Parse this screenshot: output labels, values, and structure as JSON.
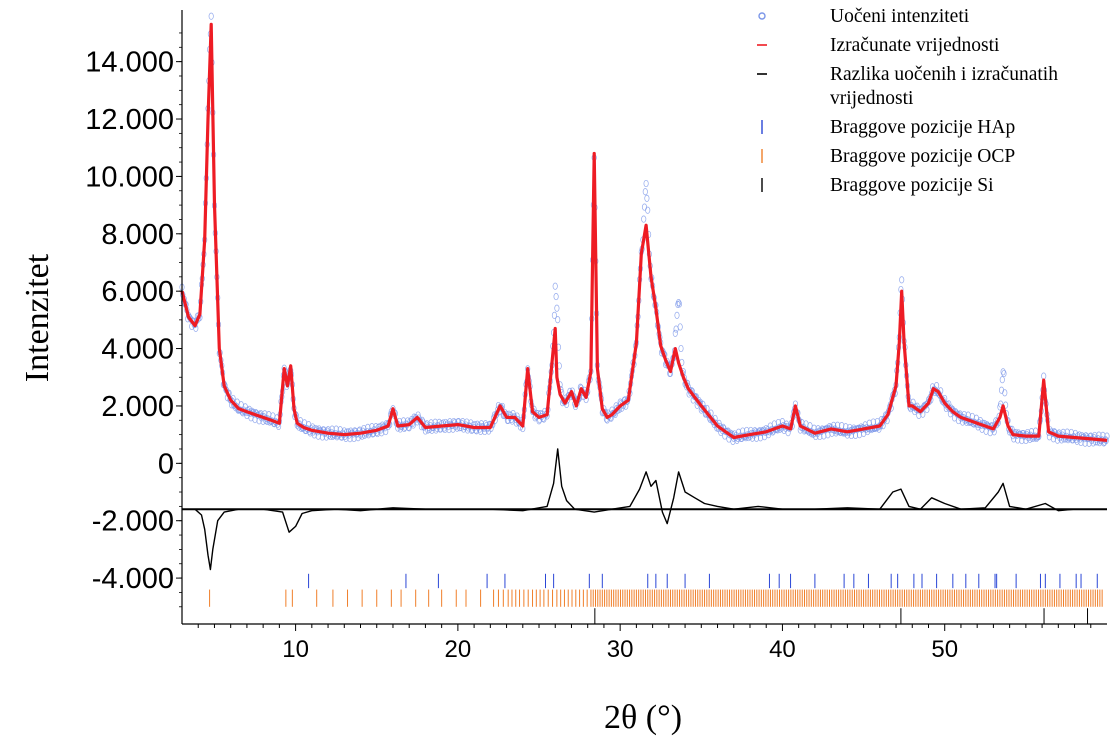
{
  "chart_data": {
    "type": "line",
    "title": "",
    "xlabel": "2θ (°)",
    "ylabel": "Intenzitet",
    "xlim": [
      3,
      60
    ],
    "ylim": [
      -5600,
      15800
    ],
    "grid": false,
    "legend_position": "top-right",
    "x_ticks": [
      {
        "value": 10,
        "label": "10"
      },
      {
        "value": 20,
        "label": "20"
      },
      {
        "value": 30,
        "label": "30"
      },
      {
        "value": 40,
        "label": "40"
      },
      {
        "value": 50,
        "label": "50"
      }
    ],
    "y_ticks": [
      {
        "value": 14000,
        "label": "14.000"
      },
      {
        "value": 12000,
        "label": "12.000"
      },
      {
        "value": 10000,
        "label": "10.000"
      },
      {
        "value": 8000,
        "label": "8.000"
      },
      {
        "value": 6000,
        "label": "6.000"
      },
      {
        "value": 4000,
        "label": "4.000"
      },
      {
        "value": 2000,
        "label": "2.000"
      },
      {
        "value": 0,
        "label": "0"
      },
      {
        "value": -2000,
        "label": "-2.000"
      },
      {
        "value": -4000,
        "label": "-4.000"
      }
    ],
    "colors": {
      "observed": "#7b96e8",
      "calculated": "#ee1c24",
      "difference": "#000000",
      "bragg_hap": "#2a46d6",
      "bragg_ocp": "#f07f2a",
      "bragg_si": "#000000"
    },
    "legend": [
      {
        "name": "Uočeni intenziteti",
        "marker": "circle",
        "color": "#7b96e8"
      },
      {
        "name": "Izračunate vrijednosti",
        "marker": "line",
        "color": "#ee1c24"
      },
      {
        "name": "Razlika uočenih i izračunatih vrijednosti",
        "marker": "line",
        "color": "#000000"
      },
      {
        "name": "Braggove pozicije HAp",
        "marker": "tick",
        "color": "#2a46d6"
      },
      {
        "name": "Braggove pozicije OCP",
        "marker": "tick",
        "color": "#f07f2a"
      },
      {
        "name": "Braggove pozicije Si",
        "marker": "tick",
        "color": "#000000"
      }
    ],
    "series": [
      {
        "name": "Izračunate vrijednosti",
        "x": [
          3.0,
          3.4,
          3.8,
          4.1,
          4.4,
          4.6,
          4.8,
          5.0,
          5.3,
          5.6,
          6.0,
          6.5,
          7.0,
          7.5,
          8.0,
          8.5,
          9.0,
          9.3,
          9.5,
          9.7,
          9.9,
          10.1,
          10.5,
          11.0,
          12.0,
          13.0,
          14.0,
          15.0,
          15.7,
          16.0,
          16.3,
          17.0,
          17.5,
          18.0,
          19.0,
          20.0,
          21.0,
          22.0,
          22.6,
          23.0,
          23.5,
          24.0,
          24.3,
          24.6,
          25.0,
          25.5,
          26.0,
          26.1,
          26.3,
          26.6,
          27.0,
          27.3,
          27.6,
          27.9,
          28.2,
          28.4,
          28.6,
          28.9,
          29.2,
          29.5,
          30.0,
          30.5,
          31.0,
          31.3,
          31.6,
          31.9,
          32.2,
          32.5,
          32.8,
          33.1,
          33.4,
          33.6,
          33.9,
          34.2,
          34.6,
          35.0,
          35.5,
          36.0,
          36.5,
          37.0,
          38.0,
          39.0,
          40.0,
          40.5,
          40.8,
          41.1,
          42.0,
          43.0,
          44.0,
          45.0,
          46.0,
          46.5,
          47.0,
          47.2,
          47.35,
          47.5,
          47.8,
          48.0,
          48.5,
          49.0,
          49.3,
          49.6,
          50.0,
          50.5,
          51.0,
          52.0,
          53.0,
          53.4,
          53.6,
          53.9,
          54.2,
          55.0,
          55.8,
          56.1,
          56.4,
          57.0,
          58.0,
          59.0,
          60.0
        ],
        "y": [
          6000,
          5100,
          4800,
          5200,
          7800,
          12000,
          15300,
          9000,
          4000,
          2700,
          2200,
          1900,
          1800,
          1700,
          1600,
          1500,
          1400,
          3300,
          2700,
          3400,
          1900,
          1400,
          1250,
          1150,
          1050,
          1000,
          1050,
          1150,
          1300,
          1900,
          1300,
          1350,
          1600,
          1250,
          1300,
          1350,
          1250,
          1250,
          2000,
          1600,
          1600,
          1300,
          3300,
          1800,
          1600,
          1700,
          4700,
          3000,
          2400,
          2100,
          2500,
          2000,
          2600,
          2300,
          3200,
          10800,
          3300,
          1900,
          1600,
          1700,
          2000,
          2200,
          4200,
          7300,
          8300,
          6500,
          5400,
          4100,
          3600,
          3200,
          4000,
          3500,
          3000,
          2600,
          2300,
          2000,
          1650,
          1300,
          1100,
          900,
          1000,
          1100,
          1300,
          1200,
          2000,
          1300,
          1050,
          1200,
          1100,
          1200,
          1300,
          1700,
          2700,
          4200,
          6000,
          4200,
          2000,
          2000,
          1800,
          2100,
          2600,
          2500,
          2100,
          1800,
          1600,
          1400,
          1200,
          1600,
          2000,
          1300,
          1000,
          950,
          950,
          2900,
          1100,
          950,
          900,
          850,
          800
        ]
      },
      {
        "name": "Razlika uočenih i izračunatih vrijednosti",
        "x": [
          3.0,
          3.8,
          4.2,
          4.4,
          4.6,
          4.75,
          4.9,
          5.2,
          5.6,
          6.5,
          8.0,
          9.2,
          9.6,
          10.0,
          10.4,
          11.0,
          12.5,
          14.0,
          16.0,
          18.0,
          20.0,
          22.0,
          24.0,
          25.5,
          25.9,
          26.15,
          26.4,
          26.7,
          27.2,
          28.4,
          29.5,
          30.6,
          31.2,
          31.6,
          31.9,
          32.2,
          32.6,
          32.9,
          33.3,
          33.6,
          34.0,
          34.6,
          35.2,
          36.0,
          37.0,
          38.5,
          40.0,
          42.0,
          44.0,
          46.0,
          46.8,
          47.3,
          47.8,
          48.5,
          49.2,
          50.0,
          51.0,
          52.5,
          53.3,
          53.6,
          54.0,
          55.0,
          56.2,
          57.0,
          58.0,
          59.0,
          60.0
        ],
        "y": [
          -1600,
          -1600,
          -1800,
          -2300,
          -3200,
          -3700,
          -3000,
          -2000,
          -1700,
          -1600,
          -1600,
          -1700,
          -2400,
          -2200,
          -1750,
          -1650,
          -1600,
          -1650,
          -1550,
          -1600,
          -1600,
          -1600,
          -1650,
          -1500,
          -700,
          500,
          -800,
          -1300,
          -1600,
          -1700,
          -1600,
          -1500,
          -900,
          -300,
          -800,
          -600,
          -1700,
          -2100,
          -1200,
          -300,
          -1000,
          -1200,
          -1400,
          -1500,
          -1600,
          -1500,
          -1600,
          -1600,
          -1550,
          -1600,
          -1000,
          -900,
          -1500,
          -1600,
          -1200,
          -1400,
          -1600,
          -1550,
          -1000,
          -700,
          -1500,
          -1600,
          -1400,
          -1650,
          -1600,
          -1600,
          -1600
        ]
      },
      {
        "name": "Braggove pozicije HAp",
        "x": [
          10.8,
          16.8,
          18.8,
          21.8,
          22.9,
          25.4,
          25.9,
          28.1,
          28.9,
          31.7,
          32.2,
          32.9,
          34.0,
          35.5,
          39.2,
          39.8,
          40.5,
          42.0,
          43.8,
          44.4,
          45.3,
          46.7,
          47.1,
          48.1,
          48.6,
          49.5,
          50.5,
          51.3,
          52.1,
          53.1,
          53.2,
          54.4,
          55.9,
          56.2,
          57.1,
          58.1,
          58.4,
          59.4
        ]
      },
      {
        "name": "Braggove pozicije OCP",
        "x": [
          4.7,
          9.4,
          9.8,
          11.3,
          12.3,
          13.2,
          14.1,
          15.0,
          15.9,
          16.5,
          17.4,
          18.2,
          19.0,
          19.9,
          20.5,
          21.4,
          22.2,
          23.1,
          23.8,
          24.6,
          25.3,
          26.1,
          26.8,
          27.5,
          28.2,
          28.9,
          29.6,
          30.3,
          31.0,
          31.7,
          32.4,
          33.1,
          33.8,
          34.5,
          35.2,
          35.9,
          36.6,
          37.3,
          38.0,
          38.7,
          39.4,
          40.1,
          40.8,
          41.5,
          42.2,
          42.9,
          43.6,
          44.3,
          45.0,
          45.7,
          46.4,
          47.1,
          47.8,
          48.5,
          49.2,
          49.9,
          50.6,
          51.3,
          52.0,
          52.7,
          53.4,
          54.1,
          54.8,
          55.5,
          56.2,
          56.9,
          57.6,
          58.3,
          59.0,
          59.7
        ]
      },
      {
        "name": "Braggove pozicije Si",
        "x": [
          28.44,
          47.3,
          56.12,
          58.8
        ]
      }
    ]
  }
}
